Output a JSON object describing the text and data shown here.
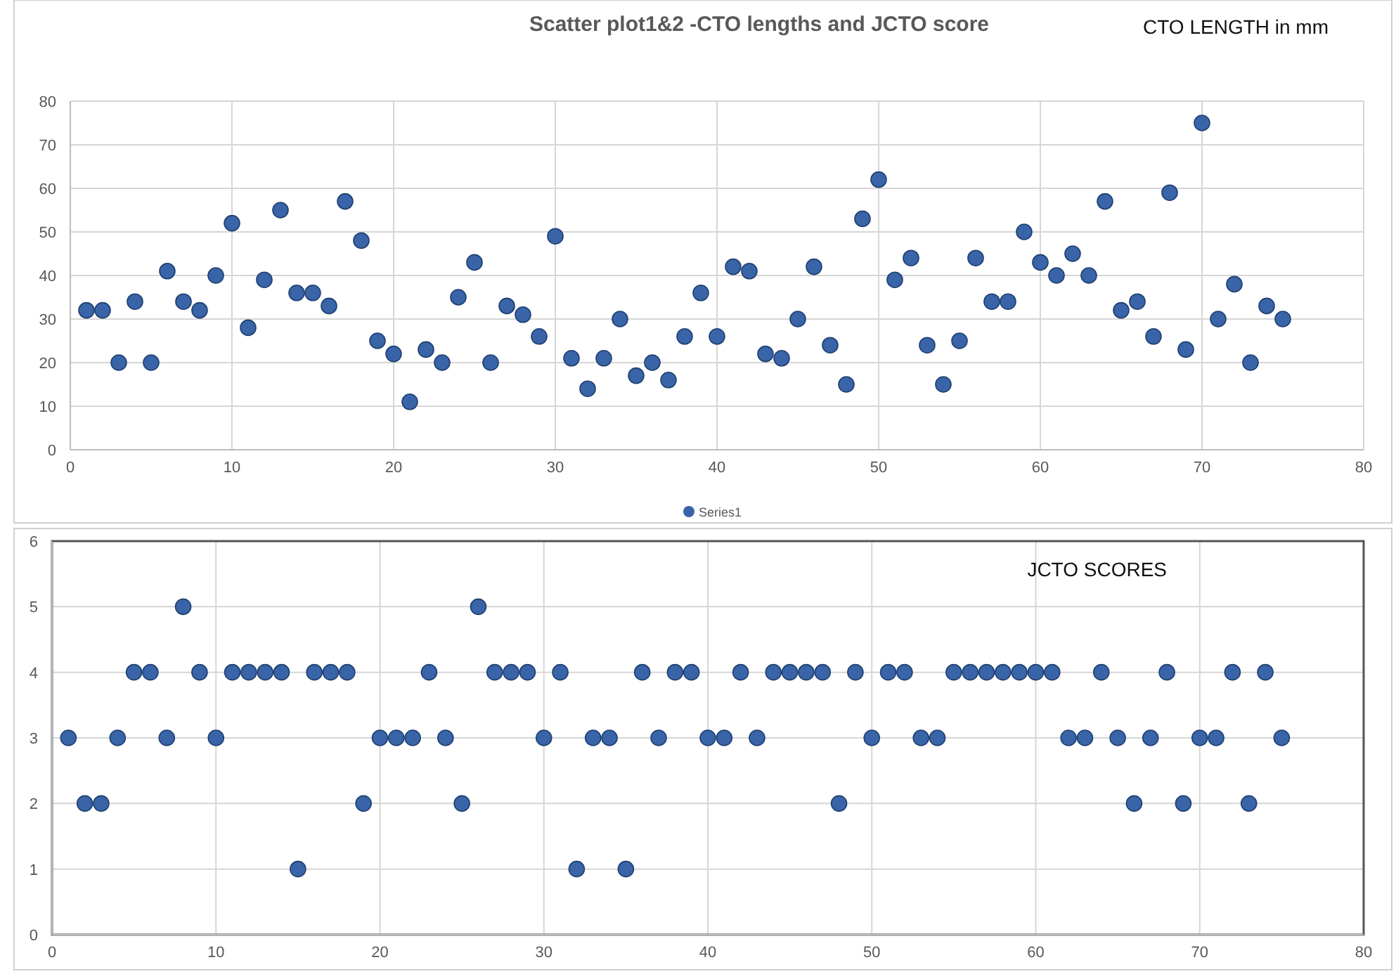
{
  "chart_data": [
    {
      "type": "scatter",
      "title": "Scatter plot1&2 -CTO lengths and JCTO score",
      "annotations": [
        "CTO LENGTH in mm"
      ],
      "xlim": [
        0,
        80
      ],
      "xticks": [
        0,
        10,
        20,
        30,
        40,
        50,
        60,
        70,
        80
      ],
      "ylim": [
        0,
        80
      ],
      "yticks": [
        0,
        10,
        20,
        30,
        40,
        50,
        60,
        70,
        80
      ],
      "grid": true,
      "legend": "bottom",
      "marker": "circle",
      "series": [
        {
          "name": "Series1",
          "color": "#3a64a8",
          "x": [
            1,
            2,
            3,
            4,
            5,
            6,
            7,
            8,
            9,
            10,
            11,
            12,
            13,
            14,
            15,
            16,
            17,
            18,
            19,
            20,
            21,
            22,
            23,
            24,
            25,
            26,
            27,
            28,
            29,
            30,
            31,
            32,
            33,
            34,
            35,
            36,
            37,
            38,
            39,
            40,
            41,
            42,
            43,
            44,
            45,
            46,
            47,
            48,
            49,
            50,
            51,
            52,
            53,
            54,
            55,
            56,
            57,
            58,
            59,
            60,
            61,
            62,
            63,
            64,
            65,
            66,
            67,
            68,
            69,
            70,
            71,
            72,
            73,
            74,
            75
          ],
          "values": [
            32,
            32,
            20,
            34,
            20,
            41,
            34,
            32,
            40,
            52,
            28,
            39,
            55,
            36,
            36,
            33,
            57,
            48,
            25,
            22,
            11,
            23,
            20,
            35,
            43,
            20,
            33,
            31,
            26,
            49,
            21,
            14,
            21,
            30,
            17,
            20,
            16,
            26,
            36,
            26,
            42,
            41,
            22,
            21,
            30,
            42,
            24,
            15,
            53,
            62,
            39,
            44,
            24,
            15,
            25,
            44,
            34,
            34,
            50,
            43,
            40,
            45,
            40,
            57,
            32,
            34,
            26,
            59,
            23,
            75,
            30,
            38,
            20,
            33,
            30
          ]
        }
      ]
    },
    {
      "type": "scatter",
      "annotations": [
        "JCTO SCORES"
      ],
      "xlim": [
        0,
        80
      ],
      "xticks": [
        0,
        10,
        20,
        30,
        40,
        50,
        60,
        70,
        80
      ],
      "ylim": [
        0,
        6
      ],
      "yticks": [
        0,
        1,
        2,
        3,
        4,
        5,
        6
      ],
      "grid": true,
      "marker": "circle",
      "series": [
        {
          "color": "#3a64a8",
          "x": [
            1,
            2,
            3,
            4,
            5,
            6,
            7,
            8,
            9,
            10,
            11,
            12,
            13,
            14,
            15,
            16,
            17,
            18,
            19,
            20,
            21,
            22,
            23,
            24,
            25,
            26,
            27,
            28,
            29,
            30,
            31,
            32,
            33,
            34,
            35,
            36,
            37,
            38,
            39,
            40,
            41,
            42,
            43,
            44,
            45,
            46,
            47,
            48,
            49,
            50,
            51,
            52,
            53,
            54,
            55,
            56,
            57,
            58,
            59,
            60,
            61,
            62,
            63,
            64,
            65,
            66,
            67,
            68,
            69,
            70,
            71,
            72,
            73,
            74,
            75
          ],
          "values": [
            3,
            2,
            2,
            3,
            4,
            4,
            3,
            5,
            4,
            3,
            4,
            4,
            4,
            4,
            1,
            4,
            4,
            4,
            2,
            3,
            3,
            3,
            4,
            3,
            2,
            5,
            4,
            4,
            4,
            3,
            4,
            1,
            3,
            3,
            1,
            4,
            3,
            4,
            4,
            3,
            3,
            4,
            3,
            4,
            4,
            4,
            4,
            2,
            4,
            3,
            4,
            4,
            3,
            3,
            4,
            4,
            4,
            4,
            4,
            4,
            4,
            3,
            3,
            4,
            3,
            2,
            3,
            4,
            2,
            3,
            3,
            4,
            2,
            4,
            3
          ]
        }
      ]
    }
  ]
}
